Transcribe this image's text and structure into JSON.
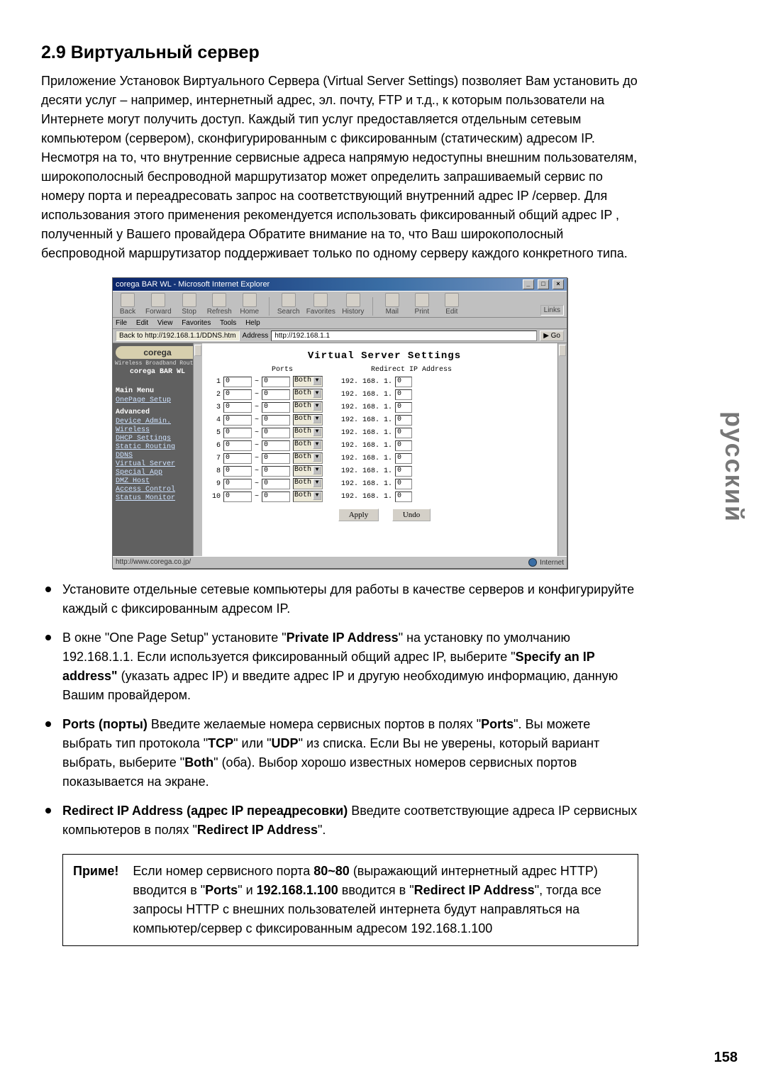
{
  "heading": "2.9 Виртуальный сервер",
  "intro": "Приложение Установок Виртуального Сервера (Virtual Server Settings) позволяет Вам установить до десяти услуг – например, интернетный адрес, эл. почту, FTP и т.д., к которым пользователи на Интернете могут получить доступ. Каждый тип услуг предоставляется отдельным сетевым компьютером (сервером), сконфигурированным с фиксированным (статическим) адресом IP. Несмотря на то, что внутренние сервисные адреса напрямую недоступны внешним пользователям, широкополосный беспроводной маршрутизатор может определить запрашиваемый сервис по номеру порта и переадресовать запрос на соответствующий внутренний адрес IP /сервер. Для использования этого применения рекомендуется использовать фиксированный общий адрес IP , полученный у Вашего провайдера Обратите внимание на то, что Ваш широкополосный беспроводной маршрутизатор поддерживает только по одному серверу каждого конкретного типа.",
  "ie": {
    "title": "corega BAR WL - Microsoft Internet Explorer",
    "window_buttons": [
      "_",
      "□",
      "×"
    ],
    "toolbar": [
      "Back",
      "Forward",
      "Stop",
      "Refresh",
      "Home",
      "Search",
      "Favorites",
      "History",
      "Mail",
      "Print",
      "Edit"
    ],
    "links_label": "Links",
    "menubar": [
      "File",
      "Edit",
      "View",
      "Favorites",
      "Tools",
      "Help"
    ],
    "back_hint": "Back to http://192.168.1.1/DDNS.htm",
    "address_label": "Address",
    "address_value": "http://192.168.1.1",
    "go_label": "Go",
    "status_url": "http://www.corega.co.jp/",
    "zone": "Internet"
  },
  "sidebar": {
    "logo": "corega",
    "sub": "Wireless Broadband Router",
    "brand": "corega  BAR WL",
    "main_menu_h": "Main Menu",
    "onepage": "OnePage Setup",
    "advanced_h": "Advanced",
    "items": [
      "Device Admin.",
      "Wireless",
      "DHCP Settings",
      "Static Routing",
      "DDNS",
      "Virtual Server",
      "Special App",
      "DMZ Host",
      "Access Control",
      "Status Monitor"
    ]
  },
  "vs": {
    "title": "Virtual Server Settings",
    "col_ports": "Ports",
    "col_ip": "Redirect IP Address",
    "ip_prefix": "192. 168. 1.",
    "proto": "Both",
    "default": "0",
    "apply": "Apply",
    "undo": "Undo",
    "rows": [
      1,
      2,
      3,
      4,
      5,
      6,
      7,
      8,
      9,
      10
    ]
  },
  "bullets": {
    "b1": "Установите отдельные сетевые компьютеры для работы в качестве серверов и конфигурируйте каждый с фиксированным адресом IP.",
    "b2_a": "В окне \"One Page Setup\" установите \"",
    "b2_b": "Private IP Address",
    "b2_c": "\" на установку по умолчанию 192.168.1.1. Если используется фиксированный общий адрес IP, выберите \"",
    "b2_d": "Specify an IP address\"",
    "b2_e": " (указать адрес IP) и введите адрес IP и другую необходимую информацию, данную Вашим провайдером.",
    "b3_a": "Ports (порты)",
    "b3_b": " Введите желаемые номера сервисных портов в полях \"",
    "b3_c": "Ports",
    "b3_d": "\". Вы можете выбрать тип протокола \"",
    "b3_e": "TCP",
    "b3_f": "\" или \"",
    "b3_g": "UDP",
    "b3_h": "\" из списка. Если Вы не уверены, который вариант выбрать, выберите \"",
    "b3_i": "Both",
    "b3_j": "\" (оба). Выбор хорошо известных номеров сервисных портов показывается на экране.",
    "b4_a": "Redirect IP Address (адрес IP переадресовки)",
    "b4_b": " Введите соответствующие адреса IP сервисных компьютеров в полях \"",
    "b4_c": "Redirect IP Address",
    "b4_d": "\"."
  },
  "note": {
    "label": "Приме!",
    "a": "Если номер сервисного порта ",
    "b": "80~80",
    "c": " (выражающий интернетный адрес HTTP) вводится в \"",
    "d": "Ports",
    "e": "\" и ",
    "f": "192.168.1.100",
    "g": " вводится в \"",
    "h": "Redirect IP Address",
    "i": "\", тогда все запросы HTTP с внешних пользователей интернета будут направляться на компьютер/сервер с фиксированным адресом 192.168.1.100"
  },
  "side_label": "русский",
  "page_number": "158"
}
